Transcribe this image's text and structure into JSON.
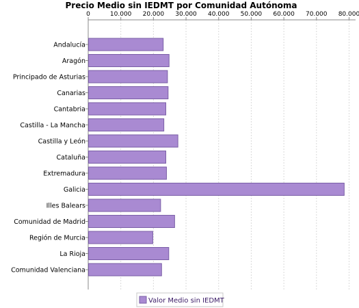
{
  "chart_data": {
    "type": "bar",
    "orientation": "horizontal",
    "title": "Precio Medio sin IEDMT por Comunidad Autónoma",
    "xlabel": "",
    "ylabel": "",
    "xlim": [
      0,
      82000
    ],
    "ticks": [
      0,
      10000,
      20000,
      30000,
      40000,
      50000,
      60000,
      70000,
      80000
    ],
    "tick_labels": [
      "0",
      "10.000",
      "20.000",
      "30.000",
      "40.000",
      "50.000",
      "60.000",
      "70.000",
      "80.000"
    ],
    "axis_position": "top",
    "grid": true,
    "legend_position": "bottom",
    "categories": [
      "Andalucía",
      "Aragón",
      "Principado de Asturias",
      "Canarias",
      "Cantabria",
      "Castilla - La Mancha",
      "Castilla y León",
      "Cataluña",
      "Extremadura",
      "Galicia",
      "Illes Balears",
      "Comunidad de Madrid",
      "Región de Murcia",
      "La Rioja",
      "Comunidad Valenciana"
    ],
    "series": [
      {
        "name": "Valor Medio sin IEDMT",
        "color": "#a98ad2",
        "border": "#7a5ea6",
        "values": [
          23000,
          24800,
          24300,
          24500,
          23800,
          23200,
          27500,
          23800,
          24000,
          78500,
          22200,
          26500,
          19800,
          24700,
          22500
        ]
      }
    ]
  }
}
